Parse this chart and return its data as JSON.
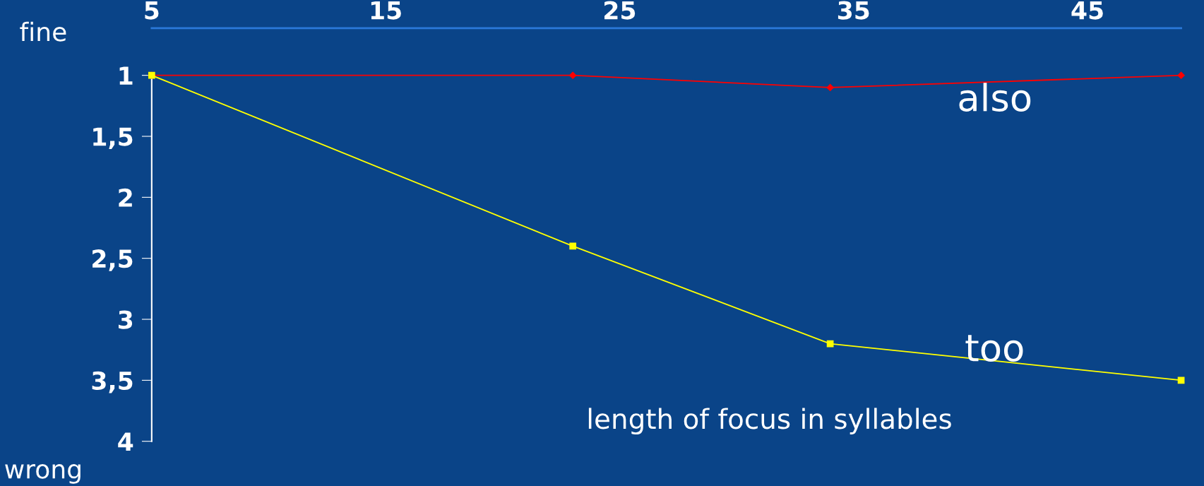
{
  "chart_data": {
    "type": "line",
    "xlabel": "length of focus in syllables",
    "annotations": [
      "fine",
      "wrong"
    ],
    "xlim": [
      5,
      49
    ],
    "xticks": [
      5,
      15,
      25,
      35,
      45
    ],
    "ylim": [
      4,
      1
    ],
    "yticks": [
      1,
      {
        "value": 1.5,
        "label": "1,5"
      },
      2,
      {
        "value": 2.5,
        "label": "2,5"
      },
      3,
      {
        "value": 3.5,
        "label": "3,5"
      },
      4
    ],
    "grid": false,
    "legend": false,
    "series": [
      {
        "name": "also",
        "color": "#ff0000",
        "marker": "diamond",
        "x": [
          5,
          23,
          34,
          49
        ],
        "values": [
          1,
          1,
          1.1,
          1
        ]
      },
      {
        "name": "too",
        "color": "#ffff00",
        "marker": "square",
        "x": [
          5,
          23,
          34,
          49
        ],
        "values": [
          1,
          2.4,
          3.2,
          3.5
        ]
      }
    ]
  }
}
